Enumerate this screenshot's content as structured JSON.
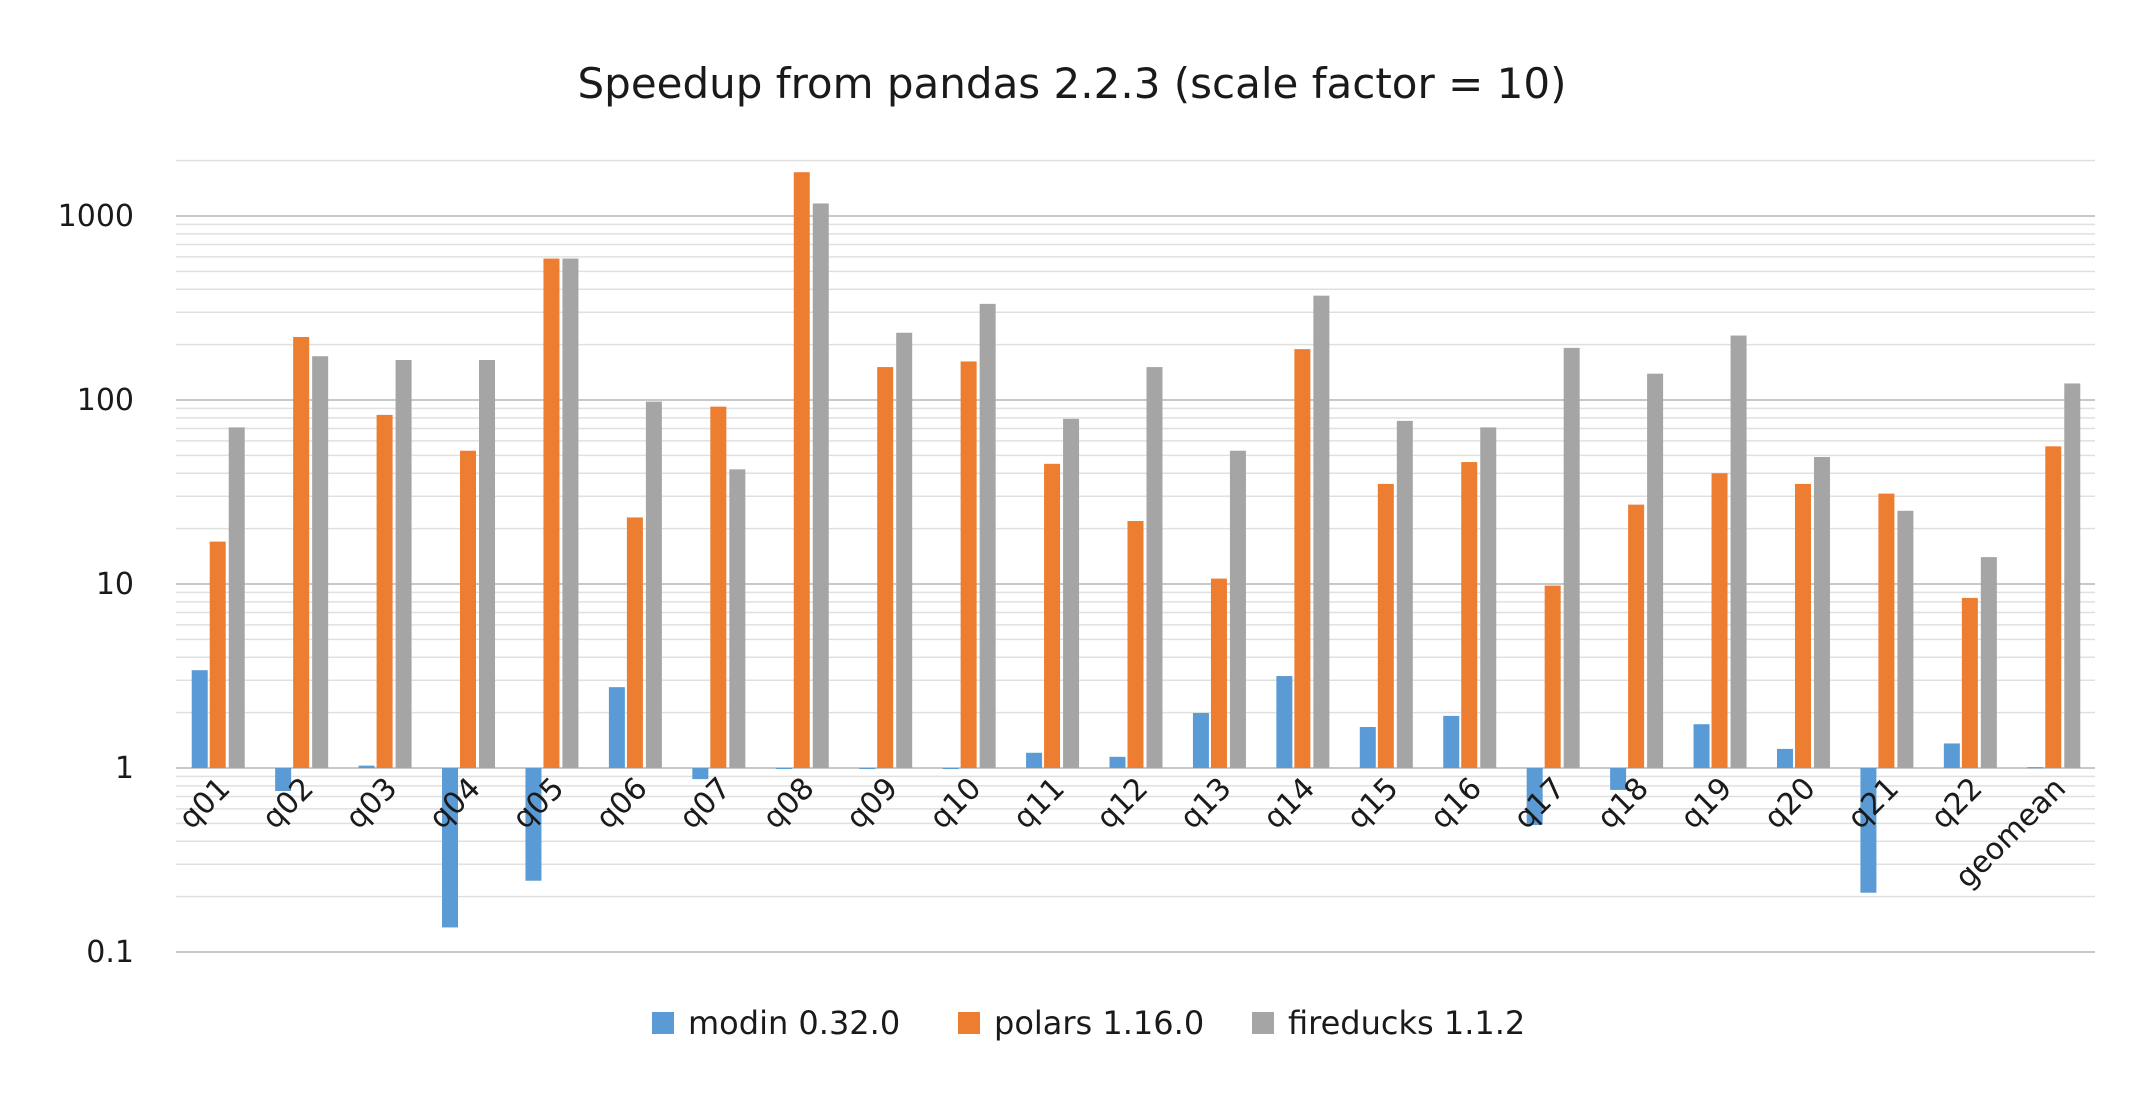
{
  "chart_data": {
    "type": "bar",
    "title": "Speedup from pandas 2.2.3 (scale factor = 10)",
    "xlabel": "",
    "ylabel": "",
    "yscale": "log",
    "ylim": [
      0.1,
      2000
    ],
    "yticks": [
      0.1,
      1,
      10,
      100,
      1000
    ],
    "ytick_labels": [
      "0.1",
      "1",
      "10",
      "100",
      "1000"
    ],
    "baseline": 1,
    "grid": true,
    "legend_position": "bottom",
    "categories": [
      "q01",
      "q02",
      "q03",
      "q04",
      "q05",
      "q06",
      "q07",
      "q08",
      "q09",
      "q10",
      "q11",
      "q12",
      "q13",
      "q14",
      "q15",
      "q16",
      "q17",
      "q18",
      "q19",
      "q20",
      "q21",
      "q22",
      "geomean"
    ],
    "series": [
      {
        "name": "modin 0.32.0",
        "color": "#5b9bd5",
        "values": [
          3.4,
          0.75,
          1.03,
          0.136,
          0.244,
          2.75,
          0.87,
          1.0,
          1.0,
          1.0,
          1.21,
          1.15,
          1.99,
          3.16,
          1.67,
          1.92,
          0.49,
          0.76,
          1.73,
          1.27,
          0.21,
          1.36,
          1.01
        ]
      },
      {
        "name": "polars 1.16.0",
        "color": "#ed7d31",
        "values": [
          17,
          220,
          83,
          53,
          587,
          23,
          92,
          1730,
          151,
          162,
          45,
          22,
          10.7,
          189,
          35,
          46,
          9.8,
          27,
          40,
          35,
          31,
          8.4,
          56
        ]
      },
      {
        "name": "fireducks 1.1.2",
        "color": "#a5a5a5",
        "values": [
          71,
          173,
          165,
          165,
          587,
          98,
          42,
          1170,
          232,
          333,
          79,
          151,
          53,
          369,
          77,
          71,
          192,
          139,
          224,
          49,
          25,
          14,
          123
        ]
      }
    ]
  }
}
